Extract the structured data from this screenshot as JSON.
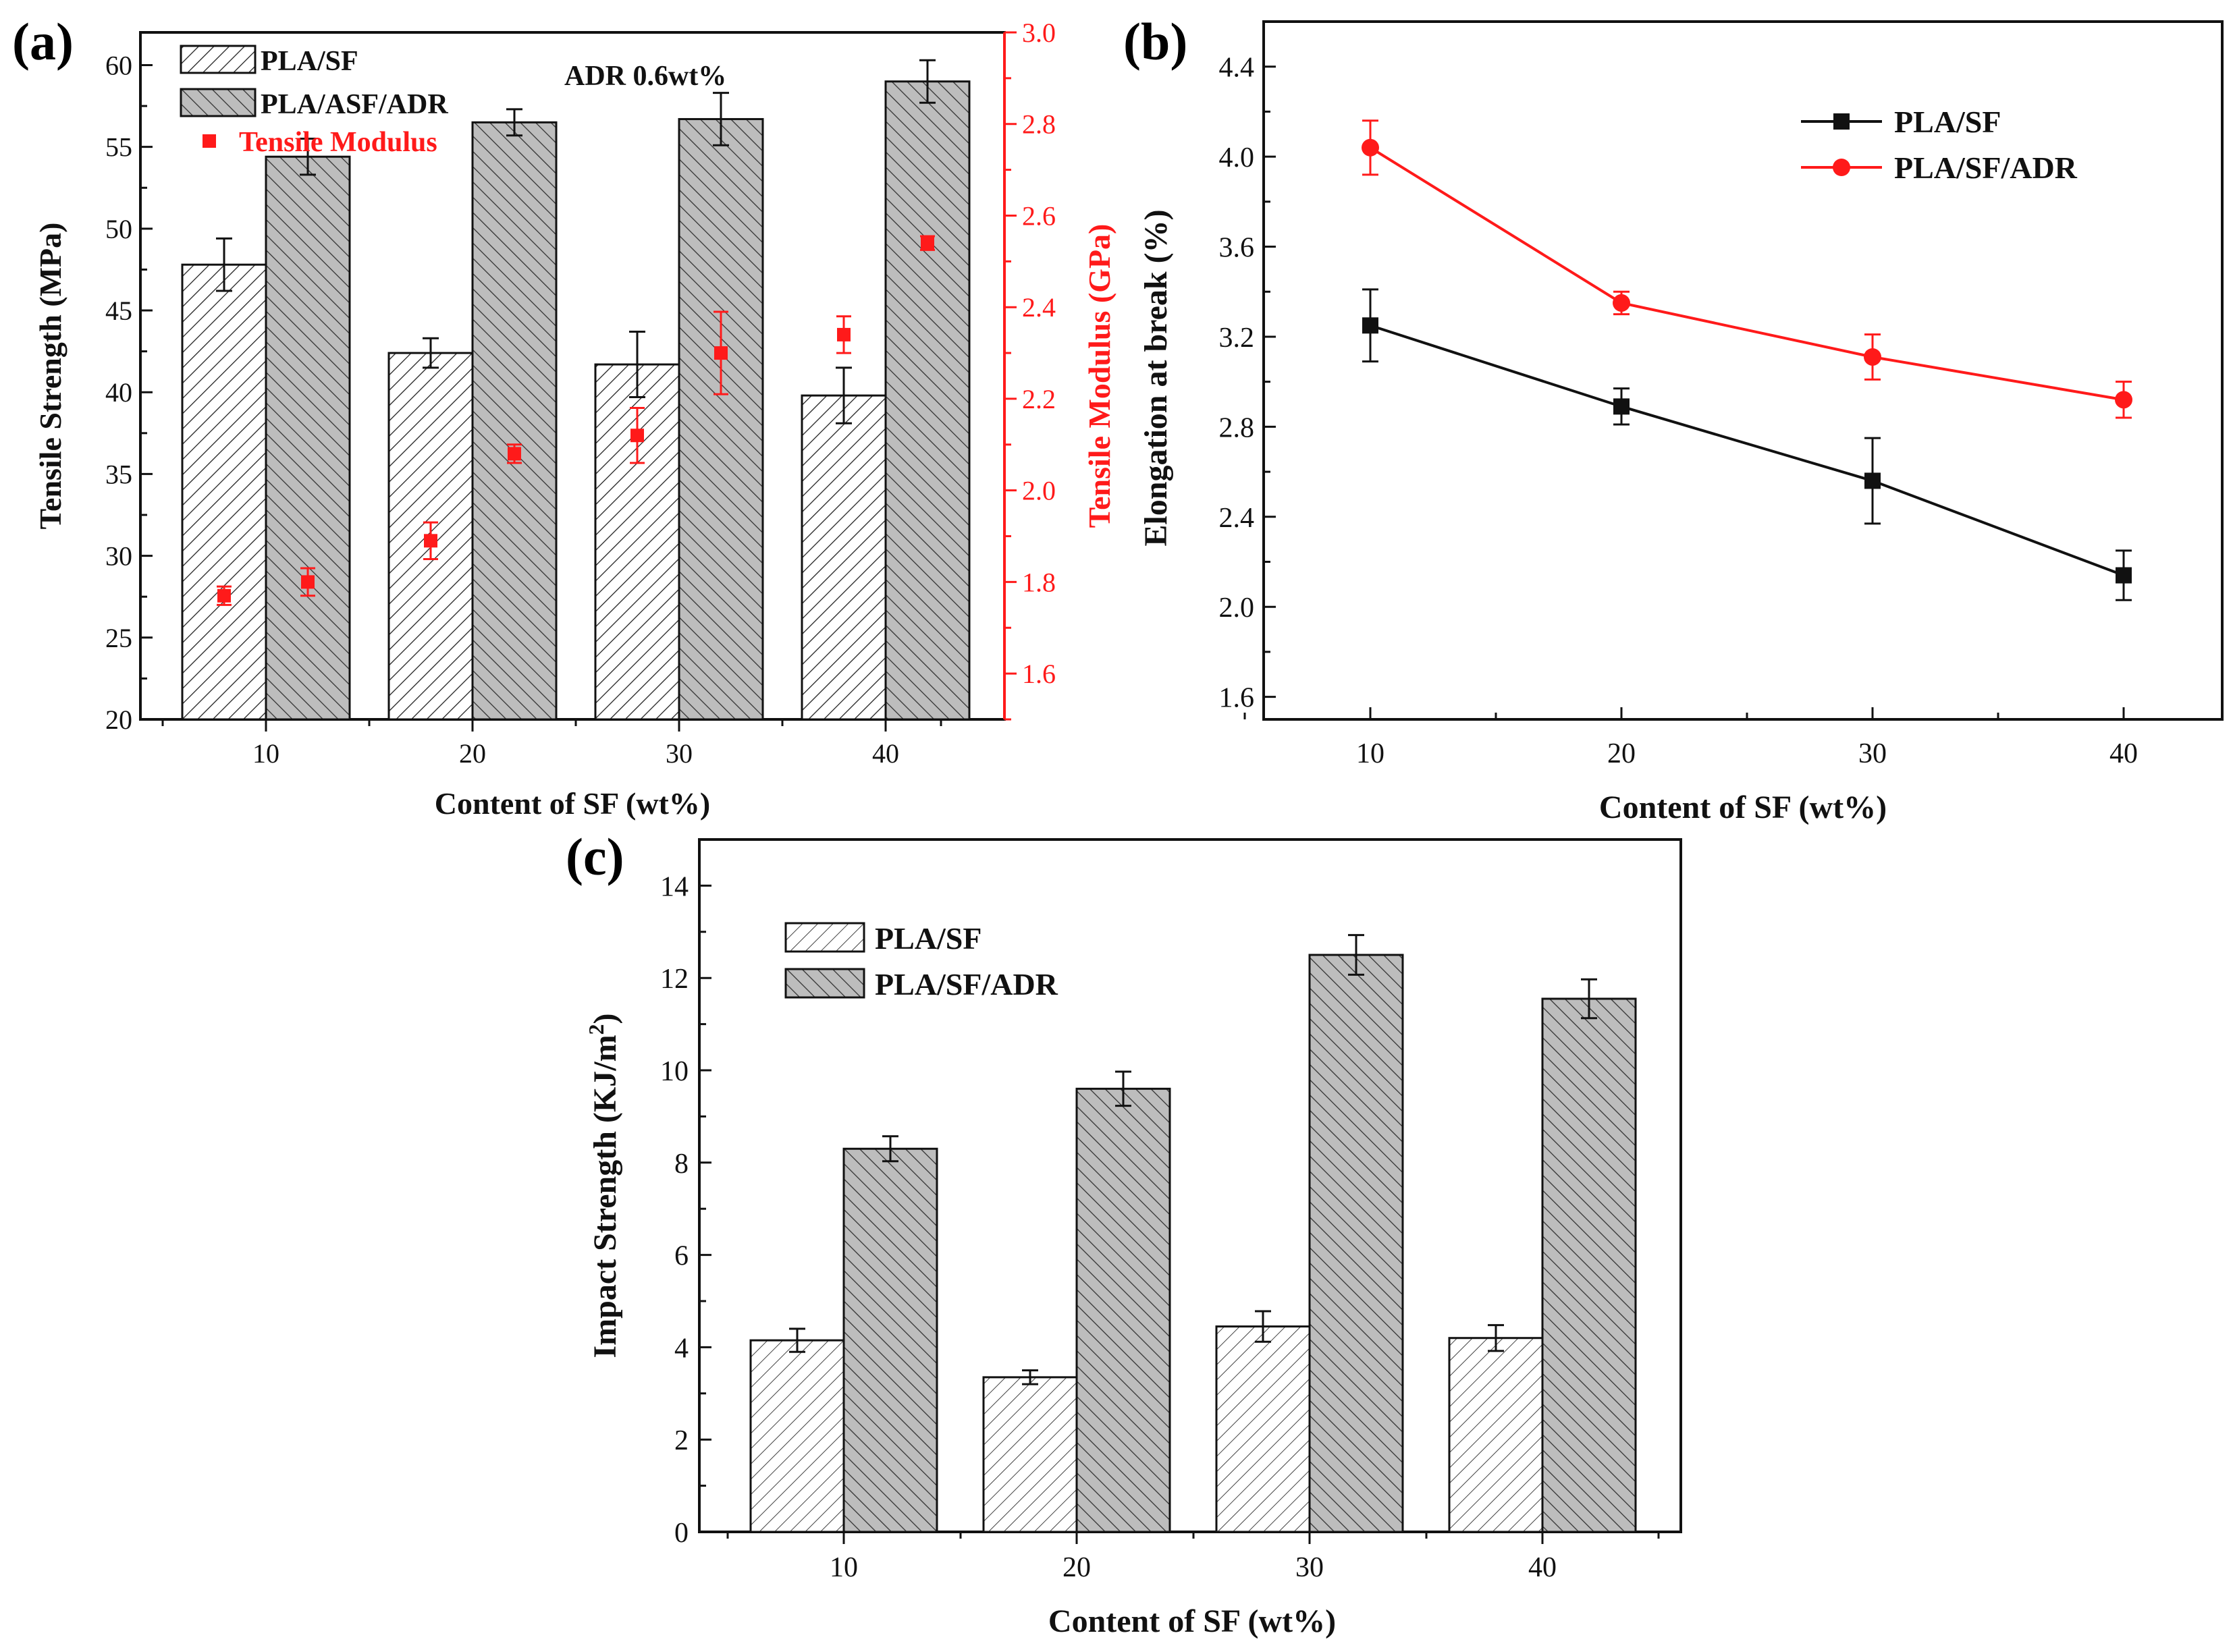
{
  "colors": {
    "black": "#111111",
    "red": "#ff1a1a",
    "gray_fill": "#bdbdbd",
    "white_fill": "#ffffff"
  },
  "chart_data": [
    {
      "panel_label": "(a)",
      "type": "bar",
      "annotation": "ADR 0.6wt%",
      "xlabel": "Content of SF (wt%)",
      "ylabel": "Tensile Strength (MPa)",
      "y2label": "Tensile Modulus (GPa)",
      "categories": [
        "10",
        "20",
        "30",
        "40"
      ],
      "ylim": [
        20,
        62
      ],
      "y_ticks": [
        "20",
        "25",
        "30",
        "35",
        "40",
        "45",
        "50",
        "55",
        "60"
      ],
      "y2lim": [
        1.5,
        3.0
      ],
      "y2_ticks": [
        "1.6",
        "1.8",
        "2.0",
        "2.2",
        "2.4",
        "2.6",
        "2.8",
        "3.0"
      ],
      "series": [
        {
          "name": "PLA/SF",
          "values": [
            47.8,
            42.4,
            41.7,
            39.8
          ],
          "errors": [
            1.6,
            0.9,
            2.0,
            1.7
          ]
        },
        {
          "name": "PLA/ASF/ADR",
          "values": [
            54.4,
            56.5,
            56.7,
            59.0
          ],
          "errors": [
            1.1,
            0.8,
            1.6,
            1.3
          ]
        }
      ],
      "modulus": {
        "name": "Tensile Modulus",
        "points": [
          {
            "x": "10",
            "y": 1.77,
            "err": 0.02
          },
          {
            "x": "10",
            "y": 1.8,
            "err": 0.03
          },
          {
            "x": "20",
            "y": 1.89,
            "err": 0.04
          },
          {
            "x": "20",
            "y": 2.08,
            "err": 0.02
          },
          {
            "x": "30",
            "y": 2.12,
            "err": 0.06
          },
          {
            "x": "30",
            "y": 2.3,
            "err": 0.09
          },
          {
            "x": "40",
            "y": 2.34,
            "err": 0.04
          },
          {
            "x": "40",
            "y": 2.54,
            "err": 0.015
          }
        ]
      }
    },
    {
      "panel_label": "(b)",
      "type": "line",
      "xlabel": "Content of SF (wt%)",
      "ylabel": "Elongation at break (%)",
      "x": [
        10,
        20,
        30,
        40
      ],
      "x_ticks": [
        "10",
        "20",
        "30",
        "40"
      ],
      "ylim": [
        1.5,
        4.6
      ],
      "y_ticks": [
        "1.6",
        "2.0",
        "2.4",
        "2.8",
        "3.2",
        "3.6",
        "4.0",
        "4.4"
      ],
      "series": [
        {
          "name": "PLA/SF",
          "values": [
            3.25,
            2.89,
            2.56,
            2.14
          ],
          "errors": [
            0.16,
            0.08,
            0.19,
            0.11
          ]
        },
        {
          "name": "PLA/SF/ADR",
          "values": [
            4.04,
            3.35,
            3.11,
            2.92
          ],
          "errors": [
            0.12,
            0.05,
            0.1,
            0.08
          ]
        }
      ]
    },
    {
      "panel_label": "(c)",
      "type": "bar",
      "xlabel": "Content of SF (wt%)",
      "ylabel": "Impact Strength (KJ/m",
      "ylabel_superscript": "2",
      "ylabel_close": ")",
      "categories": [
        "10",
        "20",
        "30",
        "40"
      ],
      "ylim": [
        0,
        15
      ],
      "y_ticks": [
        "0",
        "2",
        "4",
        "6",
        "8",
        "10",
        "12",
        "14"
      ],
      "series": [
        {
          "name": "PLA/SF",
          "values": [
            4.15,
            3.35,
            4.45,
            4.2
          ],
          "errors": [
            0.25,
            0.15,
            0.33,
            0.28
          ]
        },
        {
          "name": "PLA/SF/ADR",
          "values": [
            8.3,
            9.6,
            12.5,
            11.55
          ],
          "errors": [
            0.27,
            0.37,
            0.43,
            0.42
          ]
        }
      ]
    }
  ]
}
